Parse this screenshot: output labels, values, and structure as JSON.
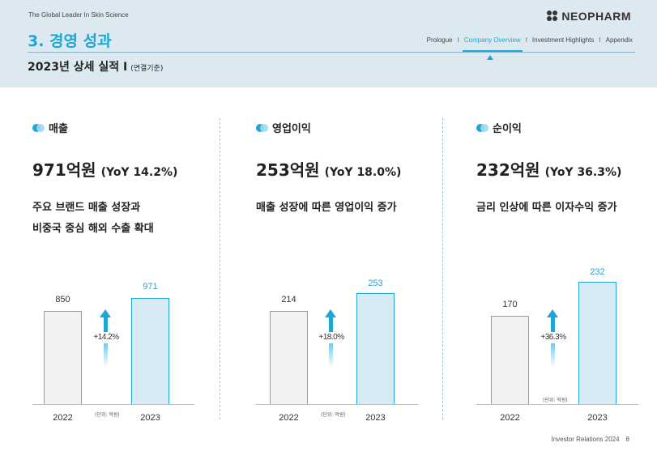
{
  "header": {
    "tagline": "The Global Leader In Skin Science",
    "logo_text": "NEOPHARM",
    "section_title": "3. 경영 성과",
    "subtitle": "2023년 상세 실적 Ⅰ",
    "subtitle_note": "(연결기준)",
    "nav": [
      "Prologue",
      "Company Overview",
      "Investment Highlights",
      "Appendix"
    ],
    "nav_separator": "I",
    "nav_active": "Company Overview"
  },
  "panels": [
    {
      "label": "매출",
      "value": "971억원",
      "yoy": "(YoY 14.2%)",
      "desc_line1": "주요 브랜드 매출 성장과",
      "desc_line2": "비중국 중심 해외 수출 확대",
      "prev_year": "2022",
      "curr_year": "2023",
      "prev_value": "850",
      "curr_value": "971",
      "growth": "+14.2%",
      "unit": "(단위: 억원)"
    },
    {
      "label": "영업이익",
      "value": "253억원",
      "yoy": "(YoY 18.0%)",
      "desc_line1": "매출 성장에 따른 영업이익 증가",
      "desc_line2": "",
      "prev_year": "2022",
      "curr_year": "2023",
      "prev_value": "214",
      "curr_value": "253",
      "growth": "+18.0%",
      "unit": "(단위: 억원)"
    },
    {
      "label": "순이익",
      "value": "232억원",
      "yoy": "(YoY 36.3%)",
      "desc_line1": "금리 인상에 따른 이자수익 증가",
      "desc_line2": "",
      "prev_year": "2022",
      "curr_year": "2023",
      "prev_value": "170",
      "curr_value": "232",
      "growth": "+36.3%",
      "unit": "(단위: 억원)"
    }
  ],
  "footer": {
    "text": "Investor Relations 2024",
    "page": "8"
  },
  "colors": {
    "accent": "#1da6d6",
    "header_bg": "#dde9f1"
  }
}
